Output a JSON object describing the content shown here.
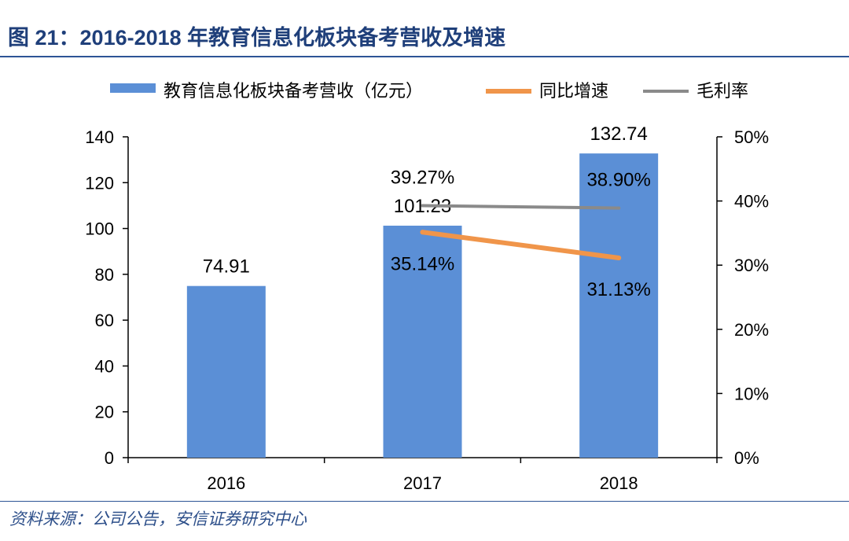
{
  "figure": {
    "title": "图 21：2016-2018 年教育信息化板块备考营收及增速",
    "source": "资料来源：公司公告，安信证券研究中心"
  },
  "colors": {
    "bar": "#5b8fd6",
    "growth": "#f0954a",
    "margin": "#8a8a8a",
    "axis": "#000000",
    "title": "#1f3f7a",
    "rule": "#2d5596"
  },
  "chart_data": {
    "type": "bar",
    "title": "2016-2018 年教育信息化板块备考营收及增速",
    "categories": [
      "2016",
      "2017",
      "2018"
    ],
    "series": [
      {
        "name": "教育信息化板块备考营收（亿元）",
        "kind": "bar",
        "axis": "left",
        "values": [
          74.91,
          101.23,
          132.74
        ],
        "labels": [
          "74.91",
          "101.23",
          "132.74"
        ]
      },
      {
        "name": "同比增速",
        "kind": "line",
        "axis": "right",
        "values": [
          null,
          35.14,
          31.13
        ],
        "labels": [
          "",
          "35.14%",
          "31.13%"
        ]
      },
      {
        "name": "毛利率",
        "kind": "line",
        "axis": "right",
        "values": [
          null,
          39.27,
          38.9
        ],
        "labels": [
          "",
          "39.27%",
          "38.90%"
        ]
      }
    ],
    "y_left": {
      "range": [
        0,
        140
      ],
      "ticks": [
        0,
        20,
        40,
        60,
        80,
        100,
        120,
        140
      ],
      "tick_labels": [
        "0",
        "20",
        "40",
        "60",
        "80",
        "100",
        "120",
        "140"
      ]
    },
    "y_right": {
      "range": [
        0,
        50
      ],
      "ticks": [
        0,
        10,
        20,
        30,
        40,
        50
      ],
      "tick_labels": [
        "0%",
        "10%",
        "20%",
        "30%",
        "40%",
        "50%"
      ]
    },
    "legend_position": "top",
    "grid": false
  }
}
